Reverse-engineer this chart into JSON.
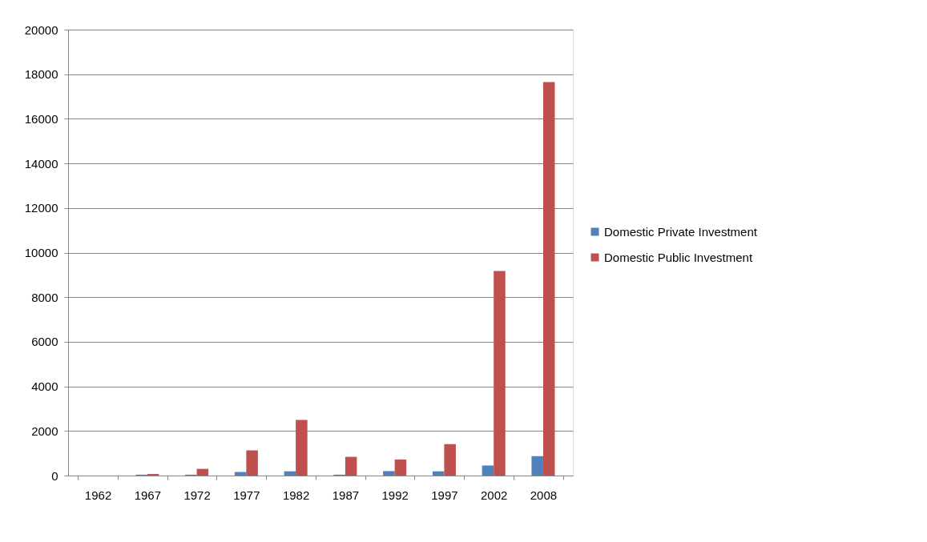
{
  "chart_data": {
    "type": "bar",
    "categories": [
      "1962",
      "1967",
      "1972",
      "1977",
      "1982",
      "1987",
      "1992",
      "1997",
      "2002",
      "2008"
    ],
    "series": [
      {
        "name": "Domestic Private Investment",
        "color": "#4f81bd",
        "values": [
          0,
          40,
          40,
          160,
          190,
          40,
          200,
          190,
          450,
          870
        ]
      },
      {
        "name": "Domestic Public Investment",
        "color": "#c0504d",
        "values": [
          0,
          70,
          300,
          1130,
          2500,
          840,
          720,
          1410,
          9170,
          17650
        ]
      }
    ],
    "ylim": [
      0,
      20000
    ],
    "yticks": [
      0,
      2000,
      4000,
      6000,
      8000,
      10000,
      12000,
      14000,
      16000,
      18000,
      20000
    ],
    "grid": "y",
    "legend": "right"
  }
}
